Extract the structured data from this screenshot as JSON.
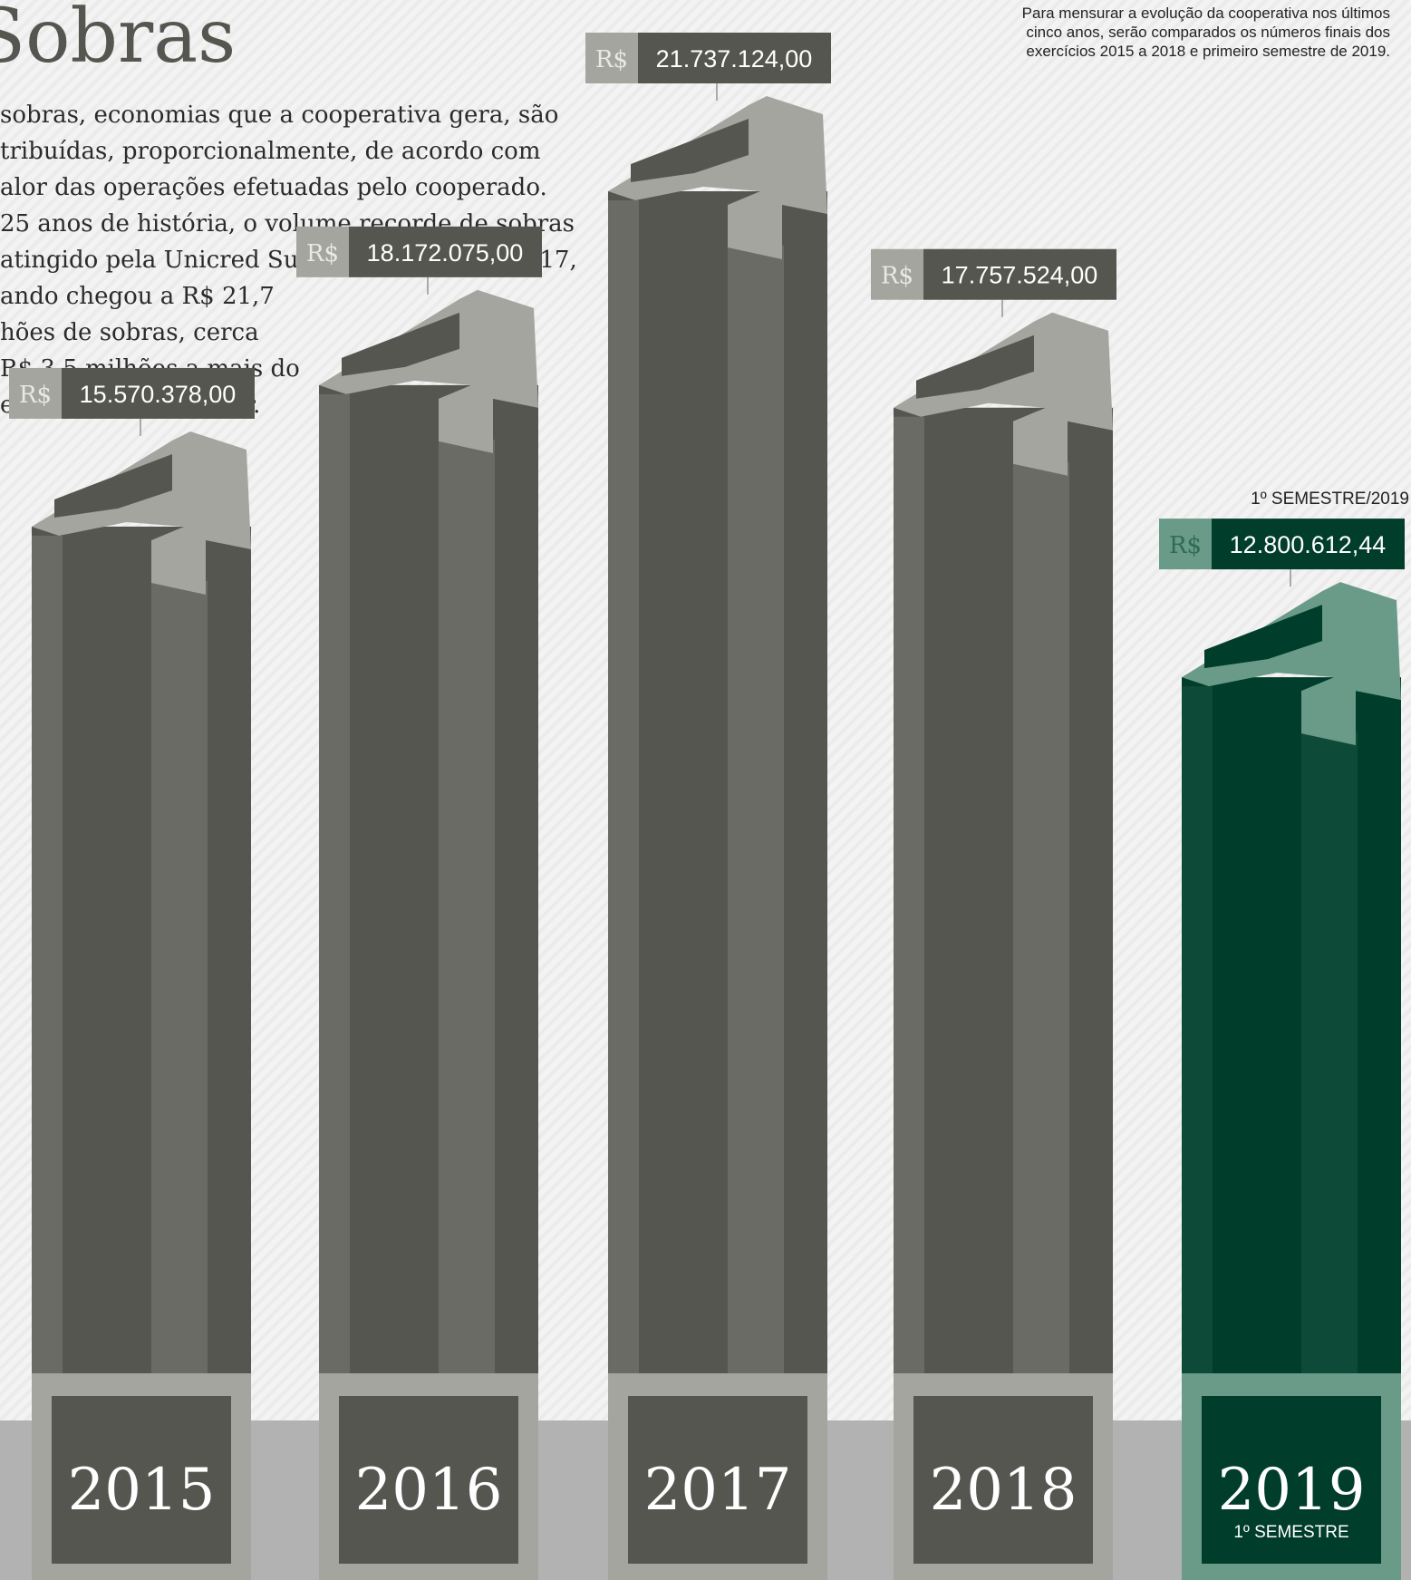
{
  "chart_data": {
    "type": "bar",
    "title": "Sobras",
    "body_lines": [
      "sobras, economias que a cooperativa gera, são",
      "tribuídas, proporcionalmente, de acordo com",
      "alor das operações efetuadas pelo cooperado.",
      "25 anos de história, o volume recorde de sobras",
      "atingido pela Unicred Sul Catarinense em 2017,",
      "ando chegou a R$ 21,7",
      "hões de sobras, cerca",
      "R$ 3,5 milhões a mais do",
      "e o exercício anterior."
    ],
    "note_lines": [
      "Para mensurar a evolução da cooperativa nos últimos",
      "cinco anos, serão comparados os números finais dos",
      "exercícios 2015 a 2018 e primeiro semestre de 2019."
    ],
    "currency": "R$",
    "categories": [
      "2015",
      "2016",
      "2017",
      "2018",
      "2019"
    ],
    "category_sublabels": [
      null,
      null,
      null,
      null,
      "1º SEMESTRE"
    ],
    "annotation": "1º SEMESTRE/2019",
    "values": [
      15570378.0,
      18172075.0,
      21737124.0,
      17757524.0,
      12800612.44
    ],
    "value_labels": [
      "15.570.378,00",
      "18.172.075,00",
      "21.737.124,00",
      "17.757.524,00",
      "12.800.612,44"
    ],
    "colors": [
      "#55564f",
      "#55564f",
      "#55564f",
      "#55564f",
      "#003d2b"
    ]
  }
}
